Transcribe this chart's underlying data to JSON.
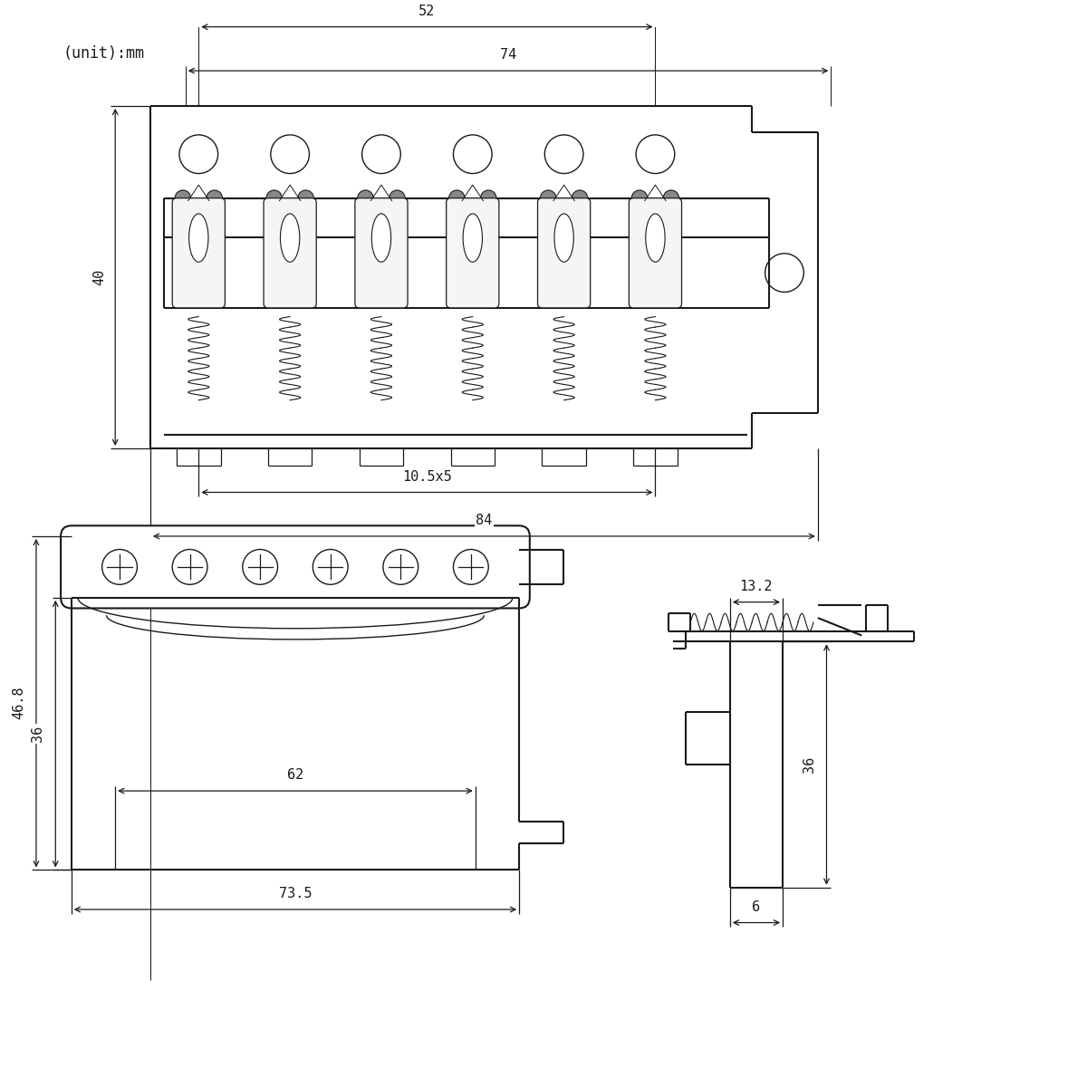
{
  "bg_color": "#ffffff",
  "line_color": "#1a1a1a",
  "unit_label": "(unit):mm",
  "dim_74": "74",
  "dim_52": "52",
  "dim_40": "40",
  "dim_84": "84",
  "dim_10_5x5": "10.5x5",
  "dim_46_8": "46.8",
  "dim_36_side": "36",
  "dim_62": "62",
  "dim_73_5": "73.5",
  "dim_13_2": "13.2",
  "dim_36_right": "36",
  "dim_6": "6",
  "fontsize_label": 11,
  "fontsize_dim": 11
}
